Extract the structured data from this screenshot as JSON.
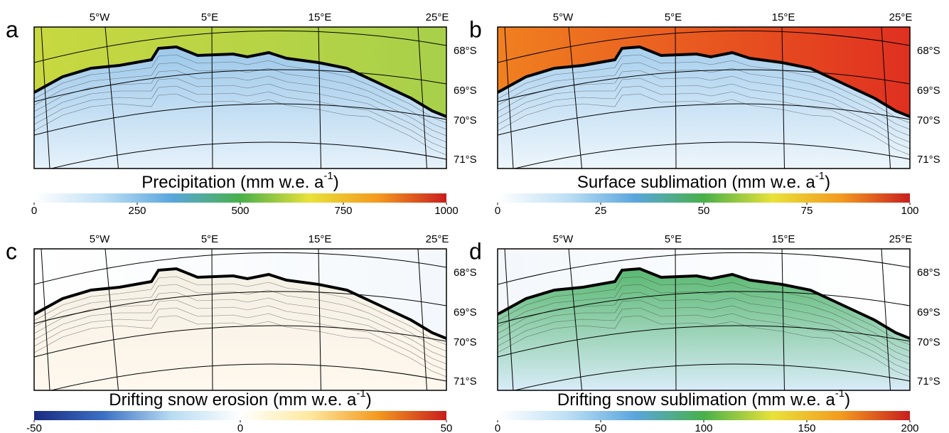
{
  "panels": [
    {
      "letter": "a",
      "lon_labels": [
        "5°W",
        "5°E",
        "15°E",
        "25°E"
      ],
      "lat_labels": [
        "68°S",
        "69°S",
        "70°S",
        "71°S"
      ],
      "title": "Precipitation (mm w.e. a",
      "title_sup": "-1",
      "title_end": ")",
      "ticks": [
        0,
        250,
        500,
        750,
        1000
      ]
    },
    {
      "letter": "b",
      "lon_labels": [
        "5°W",
        "5°E",
        "15°E",
        "25°E"
      ],
      "lat_labels": [
        "68°S",
        "69°S",
        "70°S",
        "71°S"
      ],
      "title": "Surface sublimation (mm w.e. a",
      "title_sup": "-1",
      "title_end": ")",
      "ticks": [
        0,
        25,
        50,
        75,
        100
      ]
    },
    {
      "letter": "c",
      "lon_labels": [
        "5°W",
        "5°E",
        "15°E",
        "25°E"
      ],
      "lat_labels": [
        "68°S",
        "69°S",
        "70°S",
        "71°S"
      ],
      "title": "Drifting snow erosion (mm w.e. a",
      "title_sup": "-1",
      "title_end": ")",
      "ticks": [
        -50,
        0,
        50
      ]
    },
    {
      "letter": "d",
      "lon_labels": [
        "5°W",
        "5°E",
        "15°E",
        "25°E"
      ],
      "lat_labels": [
        "68°S",
        "69°S",
        "70°S",
        "71°S"
      ],
      "title": "Drifting snow sublimation (mm w.e. a",
      "title_sup": "-1",
      "title_end": ")",
      "ticks": [
        0,
        50,
        100,
        150,
        200
      ]
    }
  ]
}
